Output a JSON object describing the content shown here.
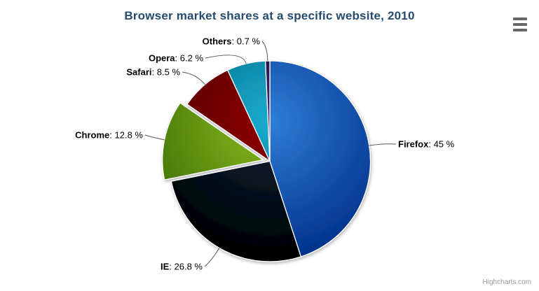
{
  "chart_data": {
    "type": "pie",
    "title": "Browser market shares at a specific website, 2010",
    "legend": "none",
    "start_angle_deg": 0,
    "label_separator": ": ",
    "unit_suffix": " %",
    "points": [
      {
        "name": "Firefox",
        "value": 45,
        "color": "#2f7ed8",
        "sliced": false
      },
      {
        "name": "IE",
        "value": 26.8,
        "color": "#0d233a",
        "sliced": false
      },
      {
        "name": "Chrome",
        "value": 12.8,
        "color": "#8bbc21",
        "sliced": true
      },
      {
        "name": "Safari",
        "value": 8.5,
        "color": "#910000",
        "sliced": false
      },
      {
        "name": "Opera",
        "value": 6.2,
        "color": "#1aadce",
        "sliced": false
      },
      {
        "name": "Others",
        "value": 0.7,
        "color": "#492970",
        "sliced": false
      }
    ]
  },
  "header": {
    "export_menu_icon": "hamburger-menu-icon"
  },
  "credits": {
    "text": "Highcharts.com"
  },
  "colors": {
    "title": "#274b6d",
    "label_text": "#000000",
    "connector": "#565656",
    "slice_border": "#ffffff",
    "credits": "#999999",
    "menu_icon": "#666666",
    "background": "#ffffff"
  }
}
